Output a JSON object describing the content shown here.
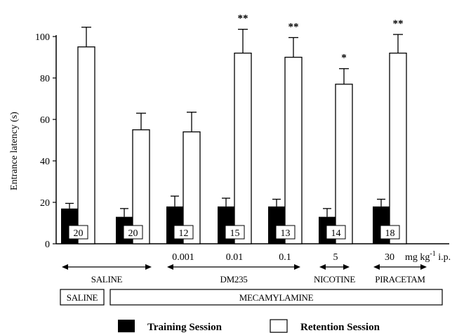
{
  "chart_data": {
    "type": "bar",
    "ylabel": "Entrance latency (s)",
    "ylim": [
      0,
      100
    ],
    "yticks": [
      "0",
      "20",
      "40",
      "60",
      "80",
      "100"
    ],
    "groups": [
      {
        "training": 17,
        "training_err": 2.5,
        "retention": 95,
        "retention_err": 9.5,
        "n": "20",
        "dose": "",
        "sig": ""
      },
      {
        "training": 13,
        "training_err": 4,
        "retention": 55,
        "retention_err": 8,
        "n": "20",
        "dose": "",
        "sig": ""
      },
      {
        "training": 18,
        "training_err": 5,
        "retention": 54,
        "retention_err": 9.5,
        "n": "12",
        "dose": "0.001",
        "sig": ""
      },
      {
        "training": 18,
        "training_err": 4,
        "retention": 92,
        "retention_err": 11.5,
        "n": "15",
        "dose": "0.01",
        "sig": "**"
      },
      {
        "training": 18,
        "training_err": 3.5,
        "retention": 90,
        "retention_err": 9.5,
        "n": "13",
        "dose": "0.1",
        "sig": "**"
      },
      {
        "training": 13,
        "training_err": 4,
        "retention": 77,
        "retention_err": 7.5,
        "n": "14",
        "dose": "5",
        "sig": "*"
      },
      {
        "training": 18,
        "training_err": 3.5,
        "retention": 92,
        "retention_err": 9,
        "n": "18",
        "dose": "30",
        "sig": "**"
      }
    ],
    "dose_unit_prefix": "mg kg",
    "dose_unit_exp": "-1",
    "dose_unit_suffix": " i.p.",
    "treatments": [
      {
        "label": "SALINE",
        "from": 0,
        "to": 1
      },
      {
        "label": "DM235",
        "from": 2,
        "to": 4
      },
      {
        "label": "NICOTINE",
        "from": 5,
        "to": 5
      },
      {
        "label": "PIRACETAM",
        "from": 6,
        "to": 6
      }
    ],
    "pretreatments": [
      {
        "label": "SALINE",
        "from": 0,
        "to": 0
      },
      {
        "label": "MECAMYLAMINE",
        "from": 1,
        "to": 6
      }
    ],
    "legend": {
      "training": "Training Session",
      "retention": "Retention Session"
    },
    "colors": {
      "training": "#000000",
      "retention": "#ffffff"
    }
  }
}
